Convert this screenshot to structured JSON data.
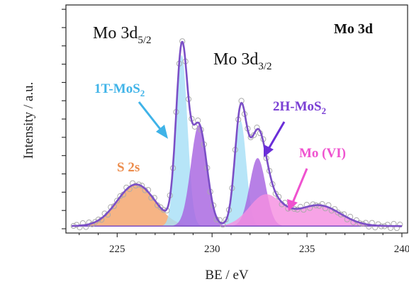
{
  "chart_data": {
    "type": "area",
    "title": "Mo 3d",
    "xlabel": "BE / eV",
    "ylabel": "Intensity / a.u.",
    "xlim": [
      222.3,
      240.3
    ],
    "ylim": [
      0,
      1.0
    ],
    "x_ticks": [
      225,
      230,
      235,
      240
    ],
    "grid": false,
    "annotations": {
      "mo3d52": {
        "main": "Mo 3d",
        "sub": "5/2"
      },
      "mo3d32": {
        "main": "Mo 3d",
        "sub": "3/2"
      },
      "t1_a": "1T-MoS",
      "t1_b": "2",
      "h2_a": "2H-MoS",
      "h2_b": "2",
      "s2s": "S 2s",
      "movi": "Mo (VI)"
    },
    "series": [
      {
        "color": "#f4a46a",
        "peaks": [
          {
            "center": 226.0,
            "height": 0.19,
            "sigma": 1.0
          }
        ]
      },
      {
        "color": "#a7dff6",
        "peaks": [
          {
            "center": 228.4,
            "height": 0.78,
            "sigma": 0.3
          },
          {
            "center": 231.5,
            "height": 0.48,
            "sigma": 0.3
          }
        ]
      },
      {
        "color": "#a764e0",
        "peaks": [
          {
            "center": 229.3,
            "height": 0.46,
            "sigma": 0.42
          },
          {
            "center": 232.4,
            "height": 0.31,
            "sigma": 0.42
          }
        ]
      },
      {
        "color": "#f58fe0",
        "peaks": [
          {
            "center": 232.8,
            "height": 0.14,
            "sigma": 0.85
          },
          {
            "center": 235.6,
            "height": 0.095,
            "sigma": 1.15
          }
        ]
      },
      {
        "color": "#7b4fc6",
        "role": "envelope"
      },
      {
        "color": "#aaaaaa",
        "role": "measured"
      }
    ]
  }
}
